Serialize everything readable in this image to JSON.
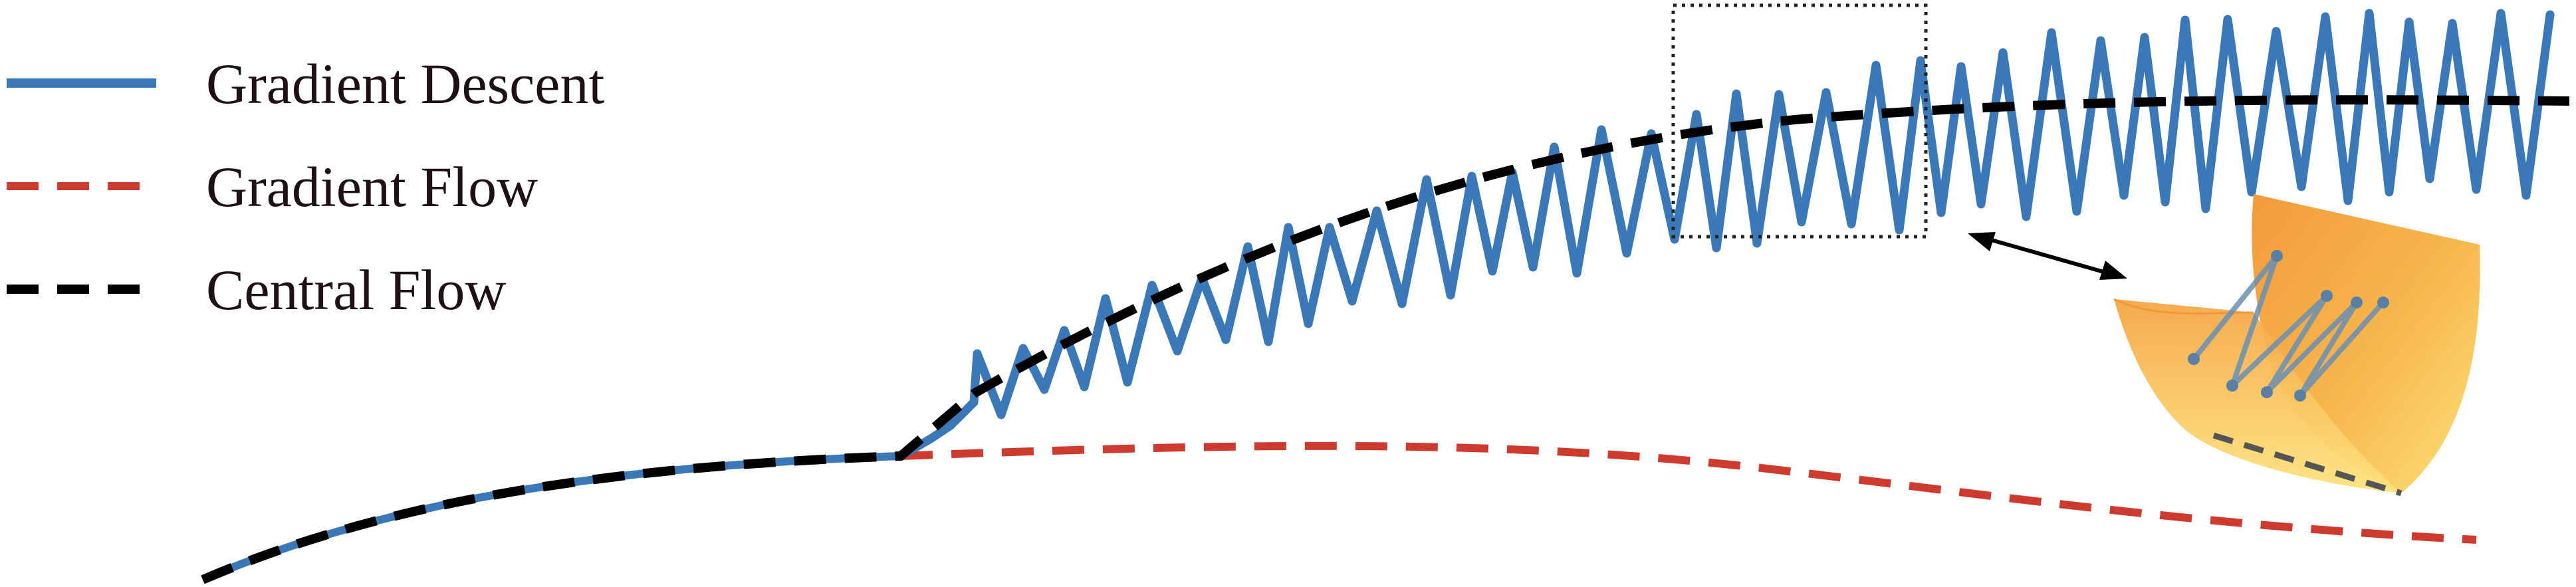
{
  "legend": {
    "items": [
      {
        "label": "Gradient Descent",
        "color": "#3a78b8",
        "style": "solid"
      },
      {
        "label": "Gradient Flow",
        "color": "#cf3a2f",
        "style": "dashed"
      },
      {
        "label": "Central Flow",
        "color": "#000000",
        "style": "dashed"
      }
    ]
  },
  "colors": {
    "gradient_descent": "#3a78b8",
    "gradient_flow": "#cf3a2f",
    "central_flow": "#000000",
    "surface_light": "#fde27a",
    "surface_dark": "#f39a3a"
  }
}
